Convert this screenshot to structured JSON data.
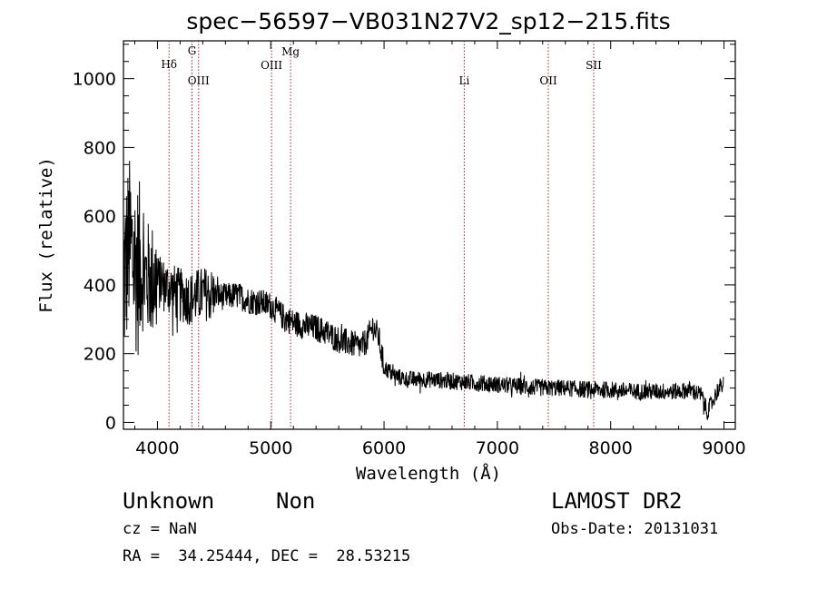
{
  "chart_data": {
    "type": "line",
    "title": "spec−56597−VB031N27V2_sp12−215.fits",
    "xlabel": "Wavelength (Å)",
    "ylabel": "Flux (relative)",
    "xlim": [
      3700,
      9100
    ],
    "ylim": [
      -20,
      1110
    ],
    "xticks": [
      4000,
      5000,
      6000,
      7000,
      8000,
      9000
    ],
    "yticks": [
      0,
      200,
      400,
      600,
      800,
      1000
    ],
    "grid": false,
    "spectrum_color": "#000000",
    "line_marker_color": "#aa2222",
    "spectral_lines": [
      {
        "name": "Hδ",
        "wavelength": 4102
      },
      {
        "name": "G",
        "wavelength": 4305
      },
      {
        "name": "OIII",
        "wavelength": 4363
      },
      {
        "name": "OIII",
        "wavelength": 5007
      },
      {
        "name": "Mg",
        "wavelength": 5175
      },
      {
        "name": "Li",
        "wavelength": 6708
      },
      {
        "name": "OII",
        "wavelength": 7450
      },
      {
        "name": "SII",
        "wavelength": 7850
      }
    ],
    "continuum": {
      "x": [
        3700,
        3750,
        3800,
        3900,
        4000,
        4100,
        4200,
        4300,
        4400,
        4500,
        4600,
        4700,
        4800,
        4900,
        5000,
        5100,
        5200,
        5300,
        5400,
        5500,
        5600,
        5700,
        5800,
        5850,
        5900,
        5950,
        6000,
        6100,
        6200,
        6400,
        6600,
        6800,
        7000,
        7200,
        7400,
        7600,
        7800,
        8000,
        8200,
        8400,
        8600,
        8700,
        8800,
        8850,
        8900,
        8950,
        9000
      ],
      "y": [
        400,
        520,
        460,
        420,
        410,
        390,
        370,
        360,
        375,
        370,
        365,
        370,
        355,
        350,
        340,
        310,
        290,
        280,
        275,
        260,
        240,
        230,
        220,
        240,
        280,
        250,
        160,
        135,
        125,
        125,
        120,
        115,
        110,
        105,
        100,
        100,
        95,
        95,
        90,
        90,
        90,
        95,
        80,
        30,
        60,
        100,
        110
      ]
    }
  },
  "footer": {
    "object_class": "Unknown",
    "subclass": "Non",
    "survey": "LAMOST DR2",
    "redshift": "cz = NaN",
    "obs_date": "Obs-Date: 20131031",
    "coords": "RA =  34.25444, DEC =  28.53215"
  }
}
